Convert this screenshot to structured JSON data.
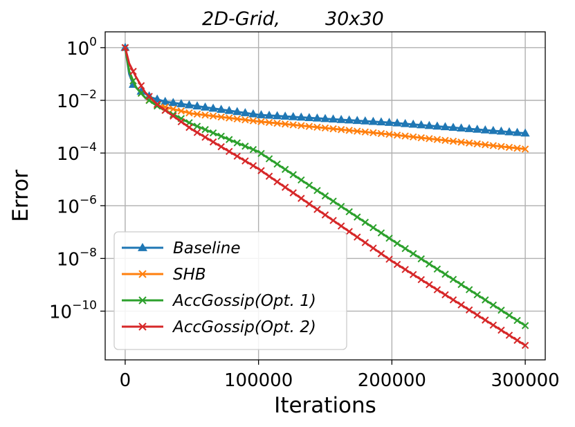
{
  "chart_data": {
    "type": "line",
    "title": "2D-Grid, 30x30",
    "title_left": "2D-Grid,",
    "title_right": "30x30",
    "xlabel": "Iterations",
    "ylabel": "Error",
    "xlim": [
      -15000,
      315000
    ],
    "ylim_log10": [
      -11.85,
      0.6
    ],
    "y_scale": "log",
    "grid": true,
    "legend_position": "lower-left",
    "x_ticks": [
      0,
      100000,
      200000,
      300000
    ],
    "x_tick_labels": [
      "0",
      "100000",
      "200000",
      "300000"
    ],
    "y_ticks_exponent": [
      0,
      -2,
      -4,
      -6,
      -8,
      -10
    ],
    "y_tick_labels": [
      "0",
      "−2",
      "−4",
      "−6",
      "−8",
      "−10"
    ],
    "y_tick_base": "10",
    "series": [
      {
        "name": "Baseline",
        "color": "#1f77b4",
        "marker": "triangle",
        "log10_at": [
          [
            0,
            0
          ],
          [
            3000,
            -1
          ],
          [
            6000,
            -1.4
          ],
          [
            10000,
            -1.6
          ],
          [
            20000,
            -1.9
          ],
          [
            30000,
            -2.05
          ],
          [
            100000,
            -2.55
          ],
          [
            200000,
            -2.85
          ],
          [
            300000,
            -3.25
          ]
        ]
      },
      {
        "name": "SHB",
        "color": "#ff7f0e",
        "marker": "x",
        "log10_at": [
          [
            0,
            0
          ],
          [
            3000,
            -0.9
          ],
          [
            8000,
            -1.5
          ],
          [
            15000,
            -1.9
          ],
          [
            25000,
            -2.2
          ],
          [
            50000,
            -2.5
          ],
          [
            100000,
            -2.8
          ],
          [
            200000,
            -3.3
          ],
          [
            300000,
            -3.85
          ]
        ]
      },
      {
        "name": "AccGossip(Opt. 1)",
        "color": "#2ca02c",
        "marker": "x",
        "log10_at": [
          [
            0,
            0
          ],
          [
            3000,
            -0.9
          ],
          [
            8000,
            -1.5
          ],
          [
            15000,
            -1.9
          ],
          [
            25000,
            -2.25
          ],
          [
            50000,
            -2.9
          ],
          [
            100000,
            -3.95
          ],
          [
            200000,
            -7.3
          ],
          [
            300000,
            -10.55
          ]
        ]
      },
      {
        "name": "AccGossip(Opt. 2)",
        "color": "#d62728",
        "marker": "x",
        "log10_at": [
          [
            0,
            0
          ],
          [
            3000,
            -0.6
          ],
          [
            8000,
            -1.1
          ],
          [
            15000,
            -1.7
          ],
          [
            25000,
            -2.2
          ],
          [
            50000,
            -3.1
          ],
          [
            100000,
            -4.6
          ],
          [
            200000,
            -8.1
          ],
          [
            300000,
            -11.3
          ]
        ]
      }
    ]
  }
}
